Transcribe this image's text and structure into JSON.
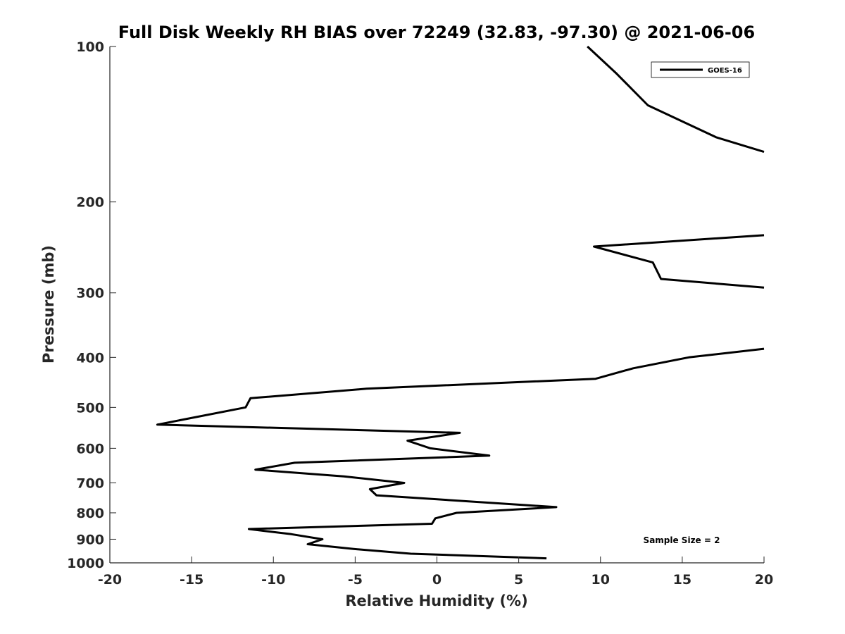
{
  "chart_data": {
    "type": "line",
    "title": "Full Disk Weekly RH BIAS over 72249 (32.83, -97.30) @ 2021-06-06",
    "xlabel": "Relative Humidity (%)",
    "ylabel": "Pressure (mb)",
    "xlim": [
      -20,
      20
    ],
    "ylim": [
      1000,
      100
    ],
    "yscale": "log",
    "y_reversed": true,
    "xticks": [
      "-20",
      "-15",
      "-10",
      "-5",
      "0",
      "5",
      "10",
      "15",
      "20"
    ],
    "yticks": [
      "100",
      "200",
      "300",
      "400",
      "500",
      "600",
      "700",
      "800",
      "900",
      "1000"
    ],
    "legend": {
      "entries": [
        "GOES-16"
      ],
      "position": "top-right"
    },
    "annotation": "Sample Size = 2",
    "series": [
      {
        "name": "GOES-16",
        "color": "#000000",
        "segments": [
          [
            {
              "x": 9.2,
              "y": 100
            },
            {
              "x": 11.0,
              "y": 113
            },
            {
              "x": 12.9,
              "y": 130
            },
            {
              "x": 17.1,
              "y": 150
            },
            {
              "x": 20.0,
              "y": 160
            }
          ],
          [
            {
              "x": 20.0,
              "y": 232
            },
            {
              "x": 9.6,
              "y": 244
            },
            {
              "x": 13.2,
              "y": 262
            },
            {
              "x": 13.7,
              "y": 282
            },
            {
              "x": 20.0,
              "y": 293
            }
          ],
          [
            {
              "x": 20.0,
              "y": 385
            },
            {
              "x": 15.4,
              "y": 400
            },
            {
              "x": 12.0,
              "y": 420
            },
            {
              "x": 9.7,
              "y": 440
            },
            {
              "x": -4.3,
              "y": 460
            },
            {
              "x": -11.4,
              "y": 480
            },
            {
              "x": -11.7,
              "y": 500
            },
            {
              "x": -17.1,
              "y": 540
            },
            {
              "x": 1.4,
              "y": 560
            },
            {
              "x": -1.8,
              "y": 580
            },
            {
              "x": -0.4,
              "y": 600
            },
            {
              "x": 3.2,
              "y": 620
            },
            {
              "x": -8.7,
              "y": 640
            },
            {
              "x": -11.1,
              "y": 660
            },
            {
              "x": -5.7,
              "y": 680
            },
            {
              "x": -2.0,
              "y": 700
            },
            {
              "x": -4.1,
              "y": 720
            },
            {
              "x": -3.7,
              "y": 740
            },
            {
              "x": 7.3,
              "y": 780
            },
            {
              "x": 1.2,
              "y": 800
            },
            {
              "x": -0.1,
              "y": 820
            },
            {
              "x": -0.3,
              "y": 840
            },
            {
              "x": -11.5,
              "y": 860
            },
            {
              "x": -8.9,
              "y": 880
            },
            {
              "x": -7.0,
              "y": 900
            },
            {
              "x": -7.9,
              "y": 920
            },
            {
              "x": -5.1,
              "y": 940
            },
            {
              "x": -1.6,
              "y": 960
            },
            {
              "x": 6.7,
              "y": 980
            }
          ]
        ]
      }
    ]
  }
}
